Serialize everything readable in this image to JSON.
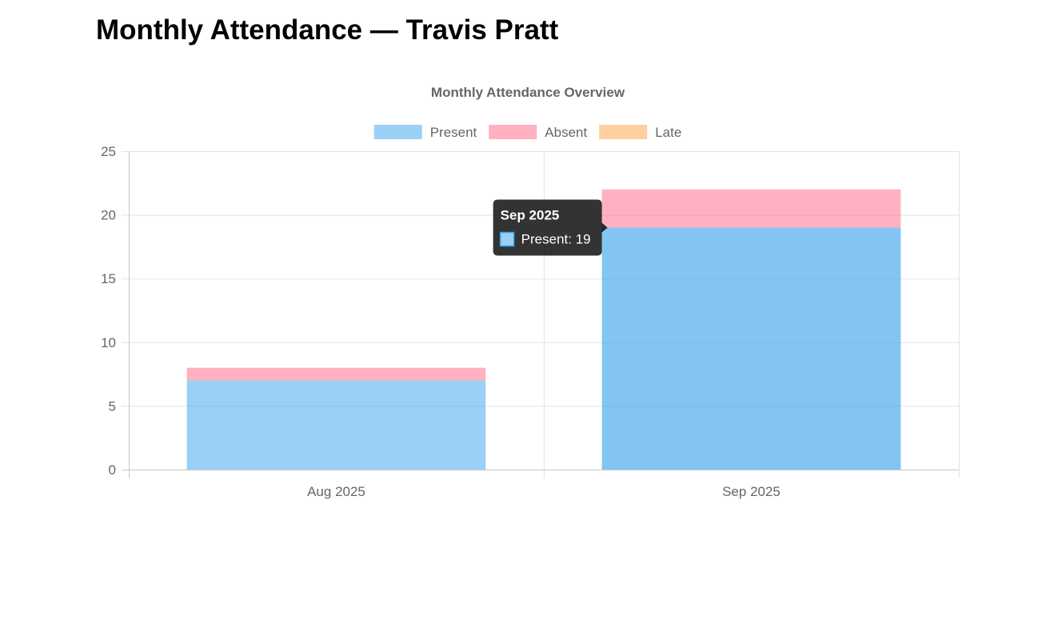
{
  "page": {
    "title": "Monthly Attendance — Travis Pratt"
  },
  "chart_data": {
    "type": "bar",
    "stacked": true,
    "title": "Monthly Attendance Overview",
    "xlabel": "",
    "ylabel": "",
    "categories": [
      "Aug 2025",
      "Sep 2025"
    ],
    "series": [
      {
        "name": "Present",
        "values": [
          7,
          19
        ],
        "color": "#36A2EB"
      },
      {
        "name": "Absent",
        "values": [
          1,
          3
        ],
        "color": "#FF6384"
      },
      {
        "name": "Late",
        "values": [
          0,
          0
        ],
        "color": "#FF9F40"
      }
    ],
    "ylim": [
      0,
      25
    ],
    "yticks": [
      0,
      5,
      10,
      15,
      20,
      25
    ],
    "grid": true,
    "legend_position": "top",
    "tooltip": {
      "title": "Sep 2025",
      "label": "Present: 19",
      "category": "Sep 2025",
      "series": "Present"
    }
  }
}
